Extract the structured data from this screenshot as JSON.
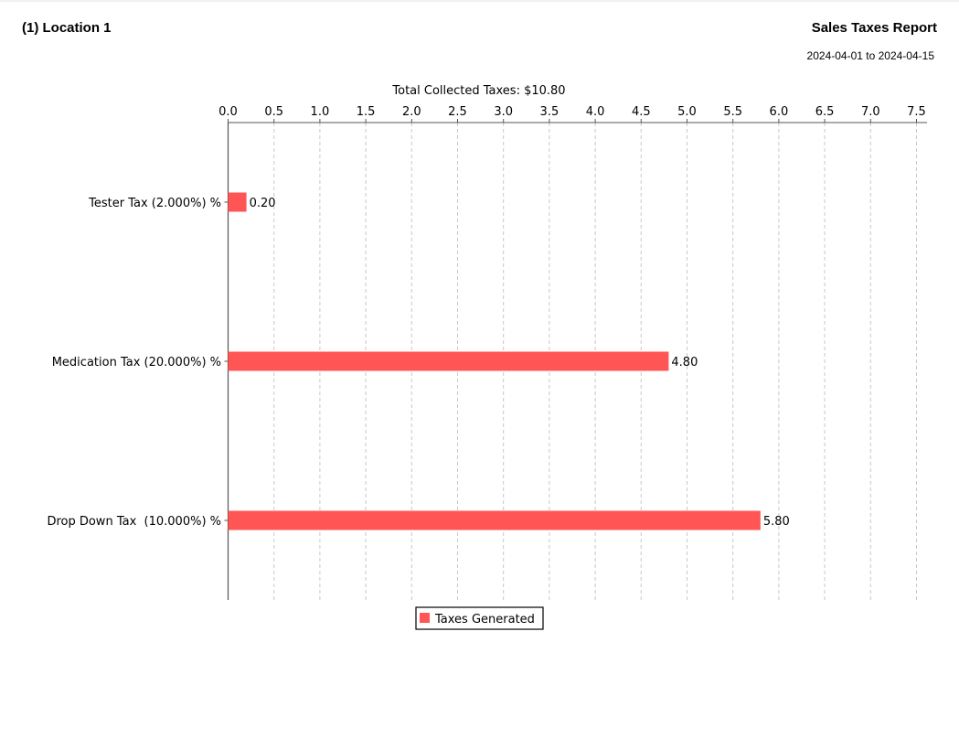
{
  "header": {
    "location": "(1) Location 1",
    "report_title": "Sales Taxes Report",
    "date_range": "2024-04-01 to 2024-04-15"
  },
  "colors": {
    "bar": "#ff5555",
    "grid": "#c8c8c8",
    "axis": "#555555"
  },
  "chart_data": {
    "type": "bar",
    "orientation": "horizontal",
    "title": "Total Collected Taxes: $10.80",
    "categories": [
      "Tester Tax (2.000%) %",
      "Medication Tax (20.000%) %",
      "Drop Down Tax  (10.000%) %"
    ],
    "series": [
      {
        "name": "Taxes Generated",
        "values": [
          0.2,
          4.8,
          5.8
        ],
        "labels": [
          "0.20",
          "4.80",
          "5.80"
        ]
      }
    ],
    "x_axis_position": "top",
    "xlim": [
      0,
      7.6
    ],
    "x_ticks": [
      "0.0",
      "0.5",
      "1.0",
      "1.5",
      "2.0",
      "2.5",
      "3.0",
      "3.5",
      "4.0",
      "4.5",
      "5.0",
      "5.5",
      "6.0",
      "6.5",
      "7.0",
      "7.5"
    ],
    "grid": "vertical-dashed",
    "legend": "bottom-center"
  }
}
